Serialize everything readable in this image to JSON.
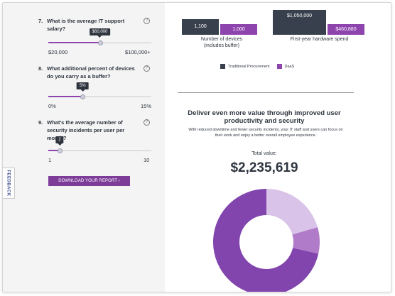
{
  "feedback_label": "FEEDBACK",
  "questions": [
    {
      "number": "7.",
      "text": "What is the average IT support salary?",
      "help_icon": "question-icon",
      "value_label": "$60,000",
      "value_fraction": 0.5,
      "min_label": "$20,000",
      "max_label": "$100,000+"
    },
    {
      "number": "8.",
      "text": "What additional percent of devices do you carry as a buffer?",
      "help_icon": "question-icon",
      "value_label": "5%",
      "value_fraction": 0.333,
      "min_label": "0%",
      "max_label": "15%"
    },
    {
      "number": "9.",
      "text": "What's the average number of security incidents per user per month?",
      "help_icon": "question-icon",
      "value_label": "2",
      "value_fraction": 0.111,
      "min_label": "1",
      "max_label": "10"
    }
  ],
  "download_button": "DOWNLOAD YOUR REPORT ›",
  "chart_data": {
    "type": "bar",
    "categories": [
      "Number of devices (includes buffer)",
      "First-year hardware spend"
    ],
    "series": [
      {
        "name": "Traditional Procurement",
        "color": "#37404c",
        "value_labels": [
          "1,100",
          "$1,050,000"
        ],
        "values": [
          1100,
          1050000
        ]
      },
      {
        "name": "DaaS",
        "color": "#8e44ad",
        "value_labels": [
          "1,000",
          "$460,880"
        ],
        "values": [
          1000,
          460880
        ]
      }
    ]
  },
  "bar_labels": {
    "devices_line1": "Number of devices",
    "devices_line2": "(includes buffer)",
    "spend": "First-year hardware spend"
  },
  "legend": {
    "traditional": "Traditional Procurement",
    "daas": "DaaS"
  },
  "headline": "Deliver even more value through improved user productivity and security",
  "subtext": "With reduced downtime and fewer security incidents, your IT staff and users can focus on their work and enjoy a better overall employee experience.",
  "total_label": "Total value:",
  "total_value": "$2,235,619",
  "donut": {
    "slices": [
      {
        "color": "#d9c3e8",
        "fraction": 0.205
      },
      {
        "color": "#b07cc9",
        "fraction": 0.08
      },
      {
        "color": "#8244ad",
        "fraction": 0.715
      }
    ]
  }
}
